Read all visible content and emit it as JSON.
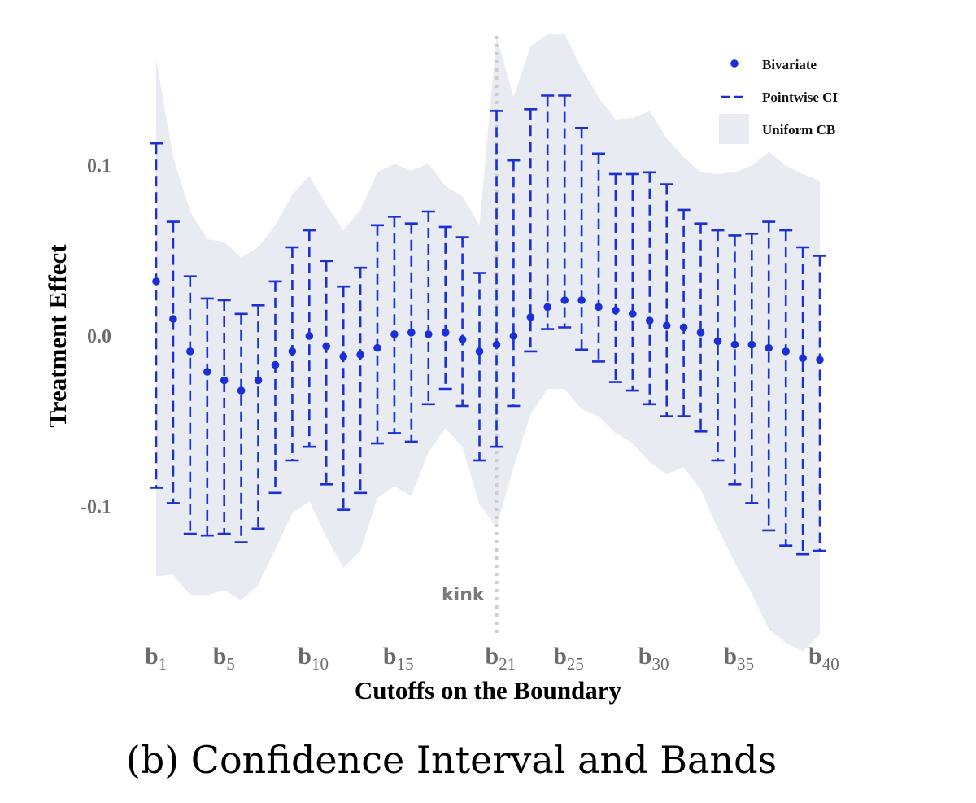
{
  "chart_data": {
    "type": "errorbar",
    "xlabel": "Cutoffs on the Boundary",
    "ylabel": "Treatment Effect",
    "ylim": [
      -0.178,
      0.178
    ],
    "x_range": [
      1,
      40
    ],
    "y_ticks": [
      {
        "value": 0.1,
        "label": "0.1"
      },
      {
        "value": 0.0,
        "label": "0.0"
      },
      {
        "value": -0.1,
        "label": "-0.1"
      }
    ],
    "x_ticks": [
      {
        "index": 1,
        "base": "b",
        "sub": "1"
      },
      {
        "index": 5,
        "base": "b",
        "sub": "5"
      },
      {
        "index": 10,
        "base": "b",
        "sub": "10"
      },
      {
        "index": 15,
        "base": "b",
        "sub": "15"
      },
      {
        "index": 21,
        "base": "b",
        "sub": "21"
      },
      {
        "index": 25,
        "base": "b",
        "sub": "25"
      },
      {
        "index": 30,
        "base": "b",
        "sub": "30"
      },
      {
        "index": 35,
        "base": "b",
        "sub": "35"
      },
      {
        "index": 40,
        "base": "b",
        "sub": "40"
      }
    ],
    "legend": {
      "placement": "top-right",
      "entries": [
        {
          "label": "Bivariate",
          "kind": "point"
        },
        {
          "label": "Pointwise CI",
          "kind": "dashed-line"
        },
        {
          "label": "Uniform CB",
          "kind": "band"
        }
      ]
    },
    "annotation": {
      "label": "kink",
      "x": 21
    },
    "colors": {
      "points": "#1a2fd8",
      "band": "#e8ecf2",
      "kink_line": "#cccccc"
    },
    "series": [
      {
        "name": "Bivariate",
        "x": [
          1,
          2,
          3,
          4,
          5,
          6,
          7,
          8,
          9,
          10,
          11,
          12,
          13,
          14,
          15,
          16,
          17,
          18,
          19,
          20,
          21,
          22,
          23,
          24,
          25,
          26,
          27,
          28,
          29,
          30,
          31,
          32,
          33,
          34,
          35,
          36,
          37,
          38,
          39,
          40
        ],
        "estimate": [
          0.032,
          0.01,
          -0.009,
          -0.021,
          -0.026,
          -0.032,
          -0.026,
          -0.017,
          -0.009,
          0.0,
          -0.006,
          -0.012,
          -0.011,
          -0.007,
          0.001,
          0.002,
          0.001,
          0.002,
          -0.002,
          -0.009,
          -0.005,
          0.0,
          0.011,
          0.017,
          0.021,
          0.021,
          0.017,
          0.015,
          0.013,
          0.009,
          0.006,
          0.005,
          0.002,
          -0.003,
          -0.005,
          -0.005,
          -0.007,
          -0.009,
          -0.013,
          -0.014
        ],
        "ci_lower": [
          -0.089,
          -0.098,
          -0.116,
          -0.117,
          -0.116,
          -0.121,
          -0.113,
          -0.092,
          -0.073,
          -0.065,
          -0.087,
          -0.102,
          -0.092,
          -0.063,
          -0.057,
          -0.062,
          -0.04,
          -0.031,
          -0.041,
          -0.073,
          -0.065,
          -0.041,
          -0.009,
          0.004,
          0.005,
          -0.008,
          -0.015,
          -0.027,
          -0.032,
          -0.04,
          -0.047,
          -0.047,
          -0.056,
          -0.073,
          -0.087,
          -0.098,
          -0.114,
          -0.123,
          -0.128,
          -0.126
        ],
        "ci_upper": [
          0.113,
          0.067,
          0.035,
          0.022,
          0.021,
          0.013,
          0.018,
          0.032,
          0.052,
          0.062,
          0.044,
          0.029,
          0.04,
          0.065,
          0.07,
          0.066,
          0.073,
          0.064,
          0.058,
          0.037,
          0.132,
          0.103,
          0.133,
          0.141,
          0.141,
          0.122,
          0.107,
          0.095,
          0.095,
          0.096,
          0.089,
          0.074,
          0.066,
          0.062,
          0.059,
          0.06,
          0.067,
          0.062,
          0.052,
          0.047
        ]
      }
    ],
    "band": {
      "name": "Uniform CB",
      "upper": [
        [
          1,
          0.163
        ],
        [
          2,
          0.105
        ],
        [
          3,
          0.073
        ],
        [
          4,
          0.057
        ],
        [
          5,
          0.055
        ],
        [
          6,
          0.046
        ],
        [
          7,
          0.052
        ],
        [
          8,
          0.065
        ],
        [
          9,
          0.083
        ],
        [
          10,
          0.094
        ],
        [
          11,
          0.077
        ],
        [
          12,
          0.062
        ],
        [
          13,
          0.074
        ],
        [
          14,
          0.096
        ],
        [
          15,
          0.101
        ],
        [
          16,
          0.097
        ],
        [
          17,
          0.101
        ],
        [
          18,
          0.088
        ],
        [
          19,
          0.082
        ],
        [
          20,
          0.065
        ],
        [
          21,
          0.176
        ],
        [
          22,
          0.14
        ],
        [
          23,
          0.17
        ],
        [
          24,
          0.177
        ],
        [
          25,
          0.177
        ],
        [
          26,
          0.157
        ],
        [
          27,
          0.14
        ],
        [
          28,
          0.127
        ],
        [
          29,
          0.128
        ],
        [
          30,
          0.132
        ],
        [
          31,
          0.116
        ],
        [
          32,
          0.105
        ],
        [
          33,
          0.096
        ],
        [
          34,
          0.095
        ],
        [
          35,
          0.096
        ],
        [
          36,
          0.1
        ],
        [
          37,
          0.108
        ],
        [
          38,
          0.1
        ],
        [
          39,
          0.095
        ],
        [
          40,
          0.091
        ]
      ],
      "lower": [
        [
          1,
          -0.141
        ],
        [
          2,
          -0.14
        ],
        [
          3,
          -0.152
        ],
        [
          4,
          -0.152
        ],
        [
          5,
          -0.149
        ],
        [
          6,
          -0.155
        ],
        [
          7,
          -0.146
        ],
        [
          8,
          -0.125
        ],
        [
          9,
          -0.104
        ],
        [
          10,
          -0.097
        ],
        [
          11,
          -0.118
        ],
        [
          12,
          -0.136
        ],
        [
          13,
          -0.126
        ],
        [
          14,
          -0.095
        ],
        [
          15,
          -0.088
        ],
        [
          16,
          -0.094
        ],
        [
          17,
          -0.068
        ],
        [
          18,
          -0.054
        ],
        [
          19,
          -0.065
        ],
        [
          20,
          -0.099
        ],
        [
          21,
          -0.112
        ],
        [
          22,
          -0.077
        ],
        [
          23,
          -0.046
        ],
        [
          24,
          -0.031
        ],
        [
          25,
          -0.031
        ],
        [
          26,
          -0.043
        ],
        [
          27,
          -0.047
        ],
        [
          28,
          -0.057
        ],
        [
          29,
          -0.063
        ],
        [
          30,
          -0.074
        ],
        [
          31,
          -0.081
        ],
        [
          32,
          -0.077
        ],
        [
          33,
          -0.09
        ],
        [
          34,
          -0.113
        ],
        [
          35,
          -0.133
        ],
        [
          36,
          -0.151
        ],
        [
          37,
          -0.172
        ],
        [
          38,
          -0.18
        ],
        [
          39,
          -0.185
        ],
        [
          40,
          -0.175
        ]
      ]
    }
  },
  "caption": "(b) Confidence Interval and Bands"
}
